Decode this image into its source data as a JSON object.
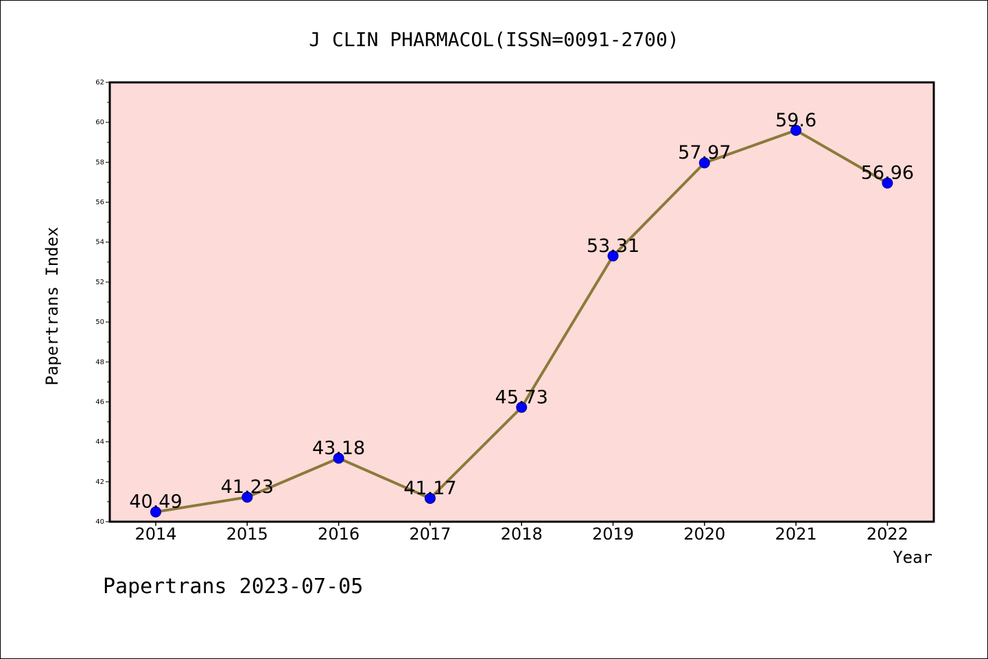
{
  "chart_data": {
    "type": "line",
    "title": "J CLIN PHARMACOL(ISSN=0091-2700)",
    "xlabel": "Year",
    "ylabel": "Papertrans Index",
    "x": [
      "2014",
      "2015",
      "2016",
      "2017",
      "2018",
      "2019",
      "2020",
      "2021",
      "2022"
    ],
    "series": [
      {
        "values": [
          40.49,
          41.23,
          43.18,
          41.17,
          45.73,
          53.31,
          57.97,
          59.6,
          56.96
        ],
        "labels": [
          "40.49",
          "41.23",
          "43.18",
          "41.17",
          "45.73",
          "53.31",
          "57.97",
          "59.6",
          "56.96"
        ]
      }
    ],
    "ylim": [
      40,
      62
    ],
    "yticks": [
      "40",
      "42",
      "44",
      "46",
      "48",
      "50",
      "52",
      "54",
      "56",
      "58",
      "60",
      "62"
    ],
    "grid": false,
    "colors": {
      "plot_background": "#fddbd8",
      "line": "#8b7a3a",
      "marker": "#0000ff"
    }
  },
  "footer": "Papertrans 2023-07-05"
}
